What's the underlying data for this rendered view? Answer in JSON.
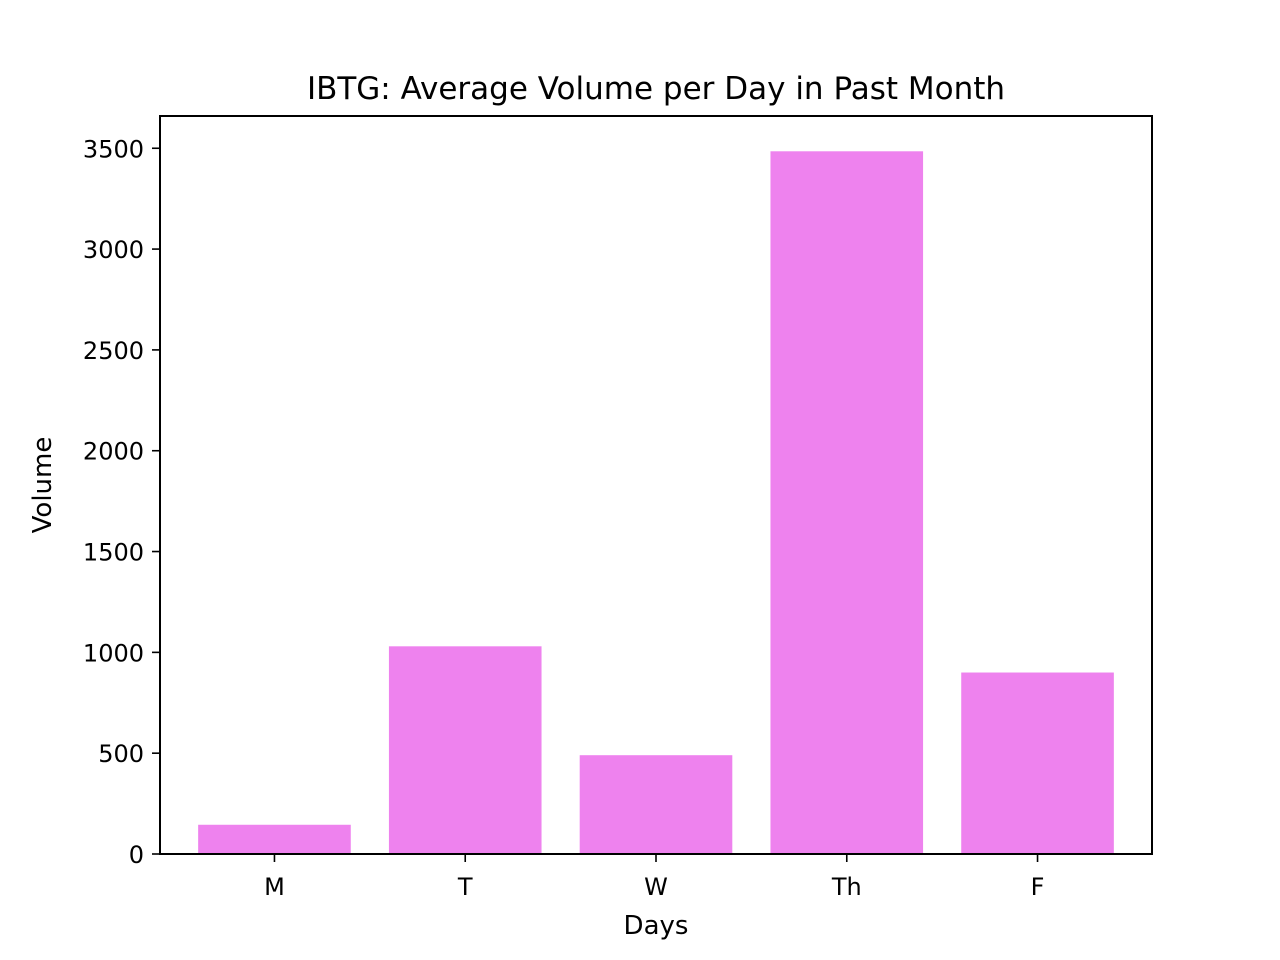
{
  "chart_data": {
    "type": "bar",
    "title": "IBTG: Average Volume per Day in Past Month",
    "xlabel": "Days",
    "ylabel": "Volume",
    "categories": [
      "M",
      "T",
      "W",
      "Th",
      "F"
    ],
    "values": [
      145,
      1030,
      490,
      3485,
      900
    ],
    "ylim": [
      0,
      3660
    ],
    "yticks": [
      0,
      500,
      1000,
      1500,
      2000,
      2500,
      3000,
      3500
    ],
    "ytick_labels": [
      "0",
      "500",
      "1000",
      "1500",
      "2000",
      "2500",
      "3000",
      "3500"
    ],
    "bar_color": "#ee82ee",
    "grid": false,
    "legend": "none"
  }
}
